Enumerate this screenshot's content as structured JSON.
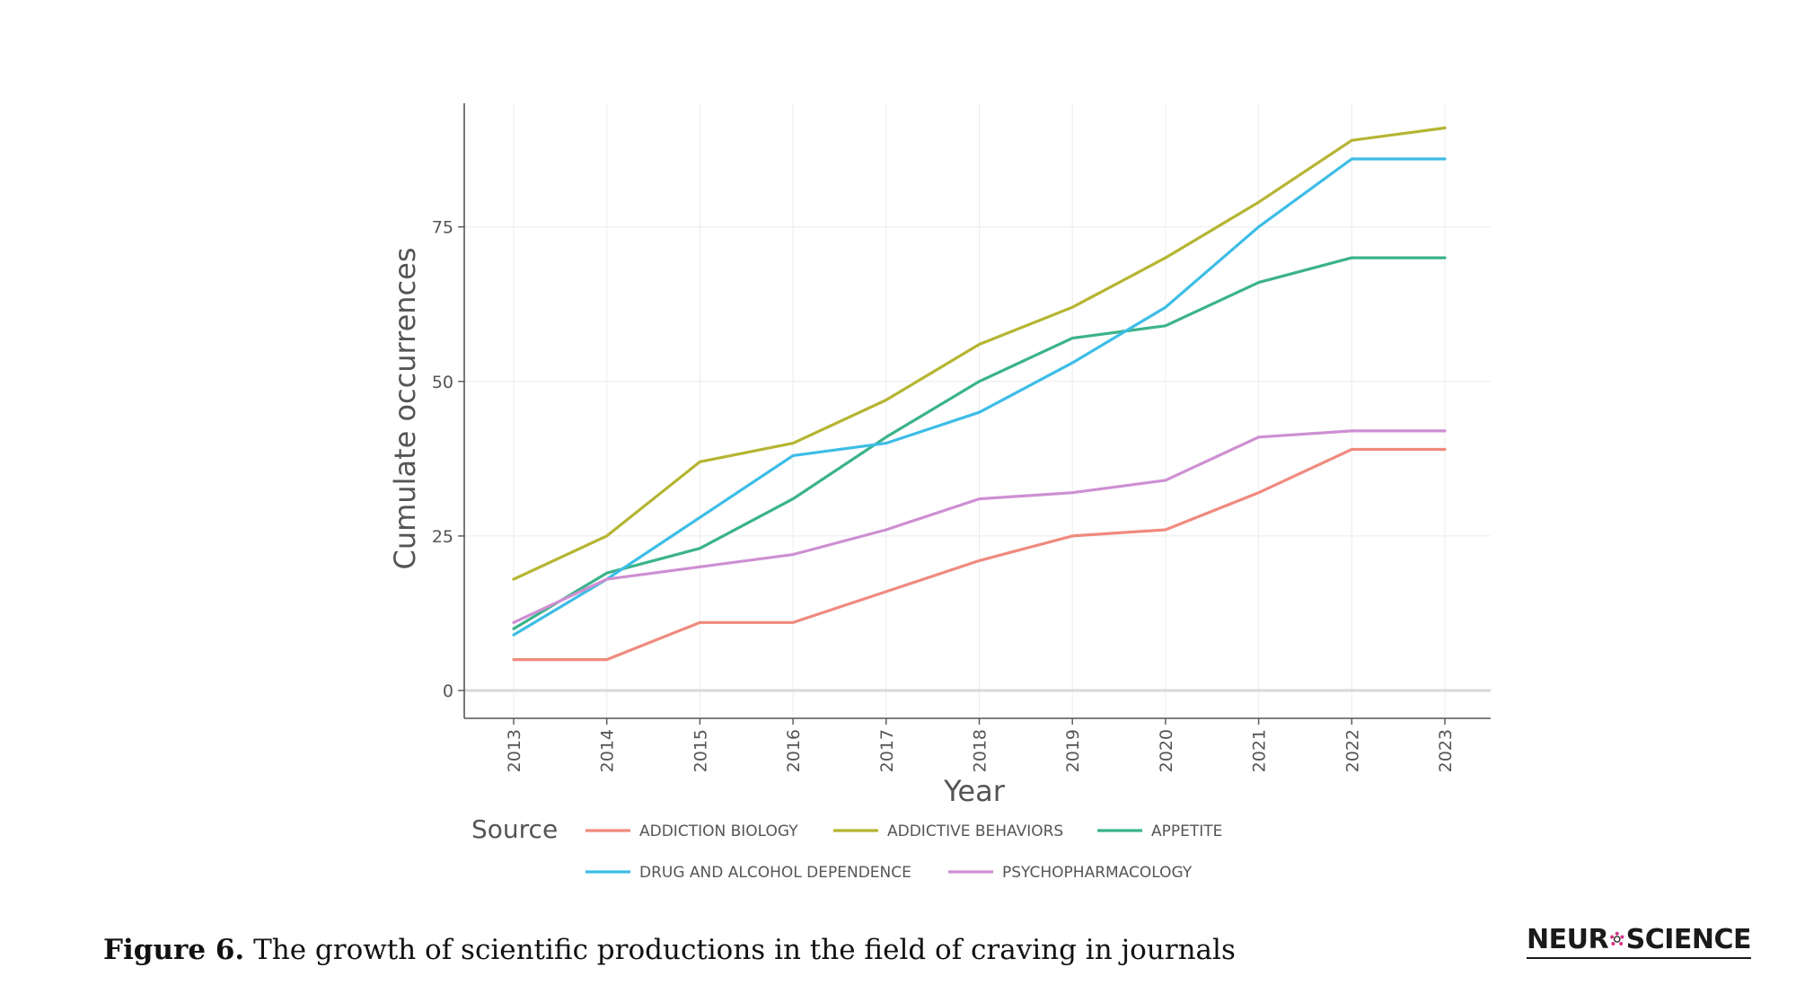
{
  "chart_data": {
    "type": "line",
    "title": "",
    "xlabel": "Year",
    "ylabel": "Cumulate occurrences",
    "x": [
      2013,
      2014,
      2015,
      2016,
      2017,
      2018,
      2019,
      2020,
      2021,
      2022,
      2023
    ],
    "x_tick_labels": [
      "2013",
      "2014",
      "2015",
      "2016",
      "2017",
      "2018",
      "2019",
      "2020",
      "2021",
      "2022",
      "2023"
    ],
    "y_ticks": [
      0,
      25,
      50,
      75
    ],
    "y_tick_labels": [
      "0",
      "25",
      "50",
      "75"
    ],
    "ylim": [
      -4.5,
      95
    ],
    "grid": true,
    "legend_title": "Source",
    "legend_position": "bottom",
    "series": [
      {
        "name": "ADDICTION BIOLOGY",
        "color": "#F08A7E",
        "values": [
          5,
          5,
          11,
          11,
          16,
          21,
          25,
          26,
          32,
          39,
          39
        ]
      },
      {
        "name": "ADDICTIVE BEHAVIORS",
        "color": "#B5B532",
        "values": [
          18,
          25,
          37,
          40,
          47,
          56,
          62,
          70,
          79,
          89,
          91
        ]
      },
      {
        "name": "APPETITE",
        "color": "#3BB38A",
        "values": [
          10,
          19,
          23,
          31,
          41,
          50,
          57,
          59,
          66,
          70,
          70
        ]
      },
      {
        "name": "DRUG AND ALCOHOL DEPENDENCE",
        "color": "#3DBDE6",
        "values": [
          9,
          18,
          28,
          38,
          40,
          45,
          53,
          62,
          75,
          86,
          86
        ]
      },
      {
        "name": "PSYCHOPHARMACOLOGY",
        "color": "#CE8FD2",
        "values": [
          11,
          18,
          20,
          22,
          26,
          31,
          32,
          34,
          41,
          42,
          42
        ]
      }
    ]
  },
  "caption": {
    "lead": "Figure 6.",
    "text": " The growth of scientific productions in the field of craving in journals"
  },
  "brand": {
    "left": "NEUR",
    "right": "SCIENCE",
    "icon": "molecule-icon"
  }
}
